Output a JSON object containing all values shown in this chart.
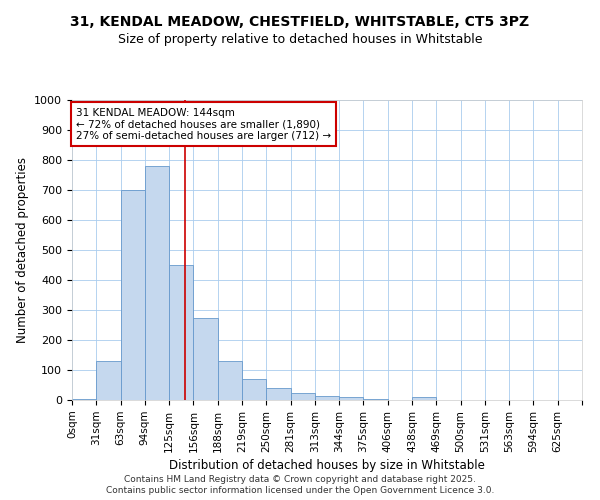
{
  "title1": "31, KENDAL MEADOW, CHESTFIELD, WHITSTABLE, CT5 3PZ",
  "title2": "Size of property relative to detached houses in Whitstable",
  "xlabel": "Distribution of detached houses by size in Whitstable",
  "ylabel": "Number of detached properties",
  "bar_color": "#c5d8ee",
  "bar_edge_color": "#6699cc",
  "background_color": "#ffffff",
  "grid_color": "#aaccee",
  "bin_left_edges": [
    0,
    31,
    62,
    93,
    124,
    155,
    186,
    217,
    248,
    279,
    310,
    341,
    372,
    403,
    434,
    465,
    496,
    527,
    558,
    589,
    620
  ],
  "bin_width": 31,
  "bin_labels": [
    "0sqm",
    "31sqm",
    "63sqm",
    "94sqm",
    "125sqm",
    "156sqm",
    "188sqm",
    "219sqm",
    "250sqm",
    "281sqm",
    "313sqm",
    "344sqm",
    "375sqm",
    "406sqm",
    "438sqm",
    "469sqm",
    "500sqm",
    "531sqm",
    "563sqm",
    "594sqm",
    "625sqm"
  ],
  "heights": [
    5,
    130,
    700,
    780,
    450,
    275,
    130,
    70,
    40,
    25,
    15,
    10,
    5,
    0,
    10,
    0,
    0,
    0,
    0,
    0,
    0
  ],
  "property_size": 144,
  "red_line_color": "#cc0000",
  "annotation_line1": "31 KENDAL MEADOW: 144sqm",
  "annotation_line2": "← 72% of detached houses are smaller (1,890)",
  "annotation_line3": "27% of semi-detached houses are larger (712) →",
  "annotation_box_color": "#ffffff",
  "annotation_box_edge": "#cc0000",
  "ylim": [
    0,
    1000
  ],
  "yticks": [
    0,
    100,
    200,
    300,
    400,
    500,
    600,
    700,
    800,
    900,
    1000
  ],
  "xlim_left": 0,
  "xlim_right": 651,
  "footer1": "Contains HM Land Registry data © Crown copyright and database right 2025.",
  "footer2": "Contains public sector information licensed under the Open Government Licence 3.0."
}
